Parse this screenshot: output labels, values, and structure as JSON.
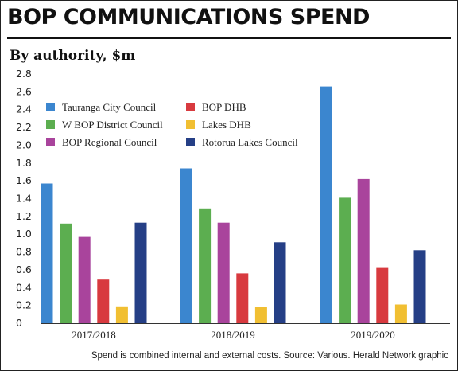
{
  "header": {
    "title": "BOP COMMUNICATIONS SPEND",
    "subtitle": "By authority, $m"
  },
  "footer": {
    "note": "Spend is combined internal and external costs. Source: Various. Herald Network graphic"
  },
  "chart_data": {
    "type": "bar",
    "title": "BOP COMMUNICATIONS SPEND",
    "subtitle": "By authority, $m",
    "xlabel": "",
    "ylabel": "",
    "ylim": [
      0,
      2.8
    ],
    "yticks": [
      "0",
      "0.2",
      "0.4",
      "0.6",
      "0.8",
      "1.0",
      "1.2",
      "1.4",
      "1.6",
      "1.8",
      "2.0",
      "2.2",
      "2.4",
      "2.6",
      "2.8"
    ],
    "grid": false,
    "legend_position": "top-left",
    "categories": [
      "2017/2018",
      "2018/2019",
      "2019/2020"
    ],
    "series": [
      {
        "name": "Tauranga City Council",
        "color": "#3b86cf",
        "values": [
          1.57,
          1.74,
          2.66
        ]
      },
      {
        "name": "W BOP District Council",
        "color": "#5cae50",
        "values": [
          1.12,
          1.29,
          1.41
        ]
      },
      {
        "name": "BOP Regional Council",
        "color": "#a9449c",
        "values": [
          0.97,
          1.13,
          1.62
        ]
      },
      {
        "name": "BOP DHB",
        "color": "#d83a3f",
        "values": [
          0.49,
          0.56,
          0.63
        ]
      },
      {
        "name": "Lakes DHB",
        "color": "#f1bf32",
        "values": [
          0.19,
          0.18,
          0.21
        ]
      },
      {
        "name": "Rotorua Lakes Council",
        "color": "#253f86",
        "values": [
          1.13,
          0.91,
          0.82
        ]
      }
    ]
  }
}
